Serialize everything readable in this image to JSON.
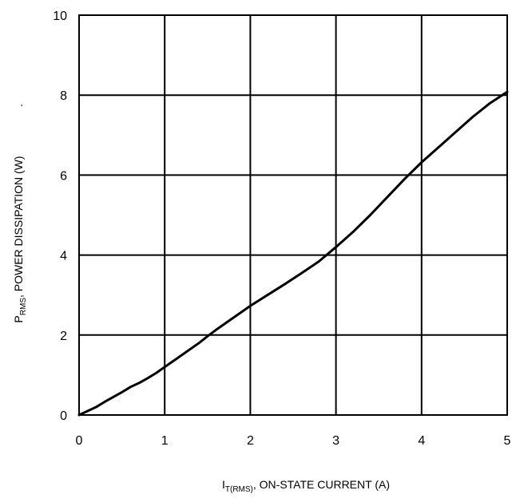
{
  "chart_data": {
    "type": "line",
    "title": "",
    "xlabel": {
      "prefix": "I",
      "subscript": "T(RMS)",
      "suffix": ", ON-STATE CURRENT (A)"
    },
    "ylabel": {
      "prefix": "P",
      "subscript": "RMS",
      "suffix": ", POWER DISSIPATION (W)"
    },
    "ylabel_extra": ".",
    "xlim": [
      0,
      5
    ],
    "ylim": [
      0,
      10
    ],
    "xticks": [
      0,
      1,
      2,
      3,
      4,
      5
    ],
    "yticks": [
      0,
      2,
      4,
      6,
      8,
      10
    ],
    "x_tick_labels": [
      "0",
      "1",
      "2",
      "3",
      "4",
      "5"
    ],
    "y_tick_labels": [
      "0",
      "2",
      "4",
      "6",
      "8",
      "10"
    ],
    "grid": true,
    "legend": "none",
    "line_color": "#000000",
    "series": [
      {
        "x": [
          0,
          0.1,
          0.2,
          0.3,
          0.4,
          0.5,
          0.6,
          0.7,
          0.8,
          0.9,
          1.0,
          1.2,
          1.4,
          1.5,
          1.6,
          1.8,
          2.0,
          2.2,
          2.4,
          2.6,
          2.8,
          3.0,
          3.2,
          3.4,
          3.6,
          3.8,
          4.0,
          4.2,
          4.4,
          4.6,
          4.8,
          5.0
        ],
        "values": [
          0,
          0.1,
          0.2,
          0.33,
          0.45,
          0.57,
          0.7,
          0.8,
          0.92,
          1.05,
          1.2,
          1.5,
          1.8,
          1.97,
          2.13,
          2.43,
          2.73,
          3.0,
          3.27,
          3.55,
          3.84,
          4.2,
          4.58,
          5.0,
          5.45,
          5.9,
          6.32,
          6.7,
          7.08,
          7.46,
          7.8,
          8.08
        ]
      }
    ]
  }
}
